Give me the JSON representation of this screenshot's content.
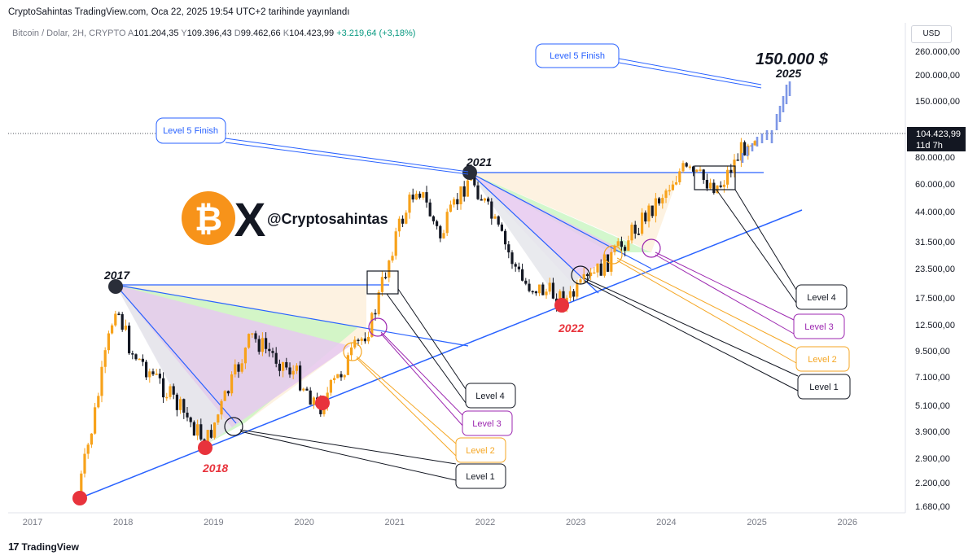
{
  "header": {
    "published": "CryptoSahintas TradingView.com, Oca 22, 2025 19:54 UTC+2 tarihinde yayınlandı",
    "symbol": "Bitcoin / Dolar, 2H, CRYPTO",
    "ohlc": [
      {
        "k": "A",
        "v": "101.204,35"
      },
      {
        "k": "Y",
        "v": "109.396,43"
      },
      {
        "k": "D",
        "v": "99.462,66"
      },
      {
        "k": "K",
        "v": "104.423,99"
      }
    ],
    "change": "+3.219,64 (+3,18%)",
    "currency": "USD"
  },
  "footer": {
    "logo_mark": "17",
    "brand": "TradingView"
  },
  "watermark": {
    "handle": "@Cryptosahintas",
    "bitcoin_glyph": "₿",
    "x_glyph": "X",
    "accent": "#f7931a"
  },
  "colors": {
    "up": "#089981",
    "candle_up": "#f7a21b",
    "candle_down": "#131722",
    "trend": "#2962ff",
    "accent_red": "#e8333c",
    "dark_point": "#2a2e39",
    "level1": "#131722",
    "level2": "#f5a623",
    "level3": "#9c27b0",
    "level4": "#131722",
    "finish": "#2962ff",
    "projection": "#7e97e6"
  },
  "chart_data": {
    "type": "candlestick",
    "title": "",
    "xlabel": "",
    "ylabel": "",
    "yscale": "log",
    "grid": false,
    "x_ticks": [
      "2017",
      "2018",
      "2019",
      "2020",
      "2021",
      "2022",
      "2023",
      "2024",
      "2025",
      "2026"
    ],
    "y_ticks": [
      "260.000,00",
      "200.000,00",
      "150.000,00",
      "80.000,00",
      "60.000,00",
      "44.000,00",
      "31.500,00",
      "23.500,00",
      "17.500,00",
      "12.500,00",
      "9.500,00",
      "7.100,00",
      "5.100,00",
      "3.900,00",
      "2.900,00",
      "2.200,00",
      "1.680,00"
    ],
    "last_price_label": "104.423,99",
    "last_price_countdown": "11d 7h",
    "approx_close_path": [
      {
        "date": "2017-07",
        "price": 1900
      },
      {
        "date": "2017-09",
        "price": 4200
      },
      {
        "date": "2017-12",
        "price": 16000
      },
      {
        "date": "2018-02",
        "price": 9500
      },
      {
        "date": "2018-06",
        "price": 6500
      },
      {
        "date": "2018-12",
        "price": 3400
      },
      {
        "date": "2019-06",
        "price": 11000
      },
      {
        "date": "2019-12",
        "price": 7200
      },
      {
        "date": "2020-03",
        "price": 5000
      },
      {
        "date": "2020-10",
        "price": 13000
      },
      {
        "date": "2021-01",
        "price": 33000
      },
      {
        "date": "2021-04",
        "price": 60000
      },
      {
        "date": "2021-07",
        "price": 33000
      },
      {
        "date": "2021-11",
        "price": 67000
      },
      {
        "date": "2022-06",
        "price": 20000
      },
      {
        "date": "2022-12",
        "price": 16500
      },
      {
        "date": "2023-06",
        "price": 27000
      },
      {
        "date": "2024-03",
        "price": 70000
      },
      {
        "date": "2024-08",
        "price": 58000
      },
      {
        "date": "2024-12",
        "price": 100000
      },
      {
        "date": "2025-01",
        "price": 104424
      }
    ],
    "annotations": {
      "years": [
        "2017",
        "2018",
        "2021",
        "2022",
        "2025"
      ],
      "target": "150.000 $",
      "finish_label": "Level 5  Finish",
      "levels": [
        "Level 4",
        "Level 3",
        "Level 2",
        "Level 1"
      ]
    }
  }
}
